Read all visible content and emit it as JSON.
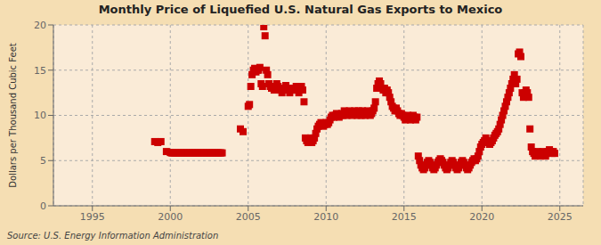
{
  "chart_data": {
    "type": "scatter",
    "title": "Monthly Price of Liquefied U.S. Natural Gas Exports to Mexico",
    "ylabel": "Dollars per Thousand Cubic Feet",
    "annotation": "Source: U.S. Energy Information Administration",
    "color": "#cc0000",
    "marker": "square",
    "grid": true,
    "xlim": [
      1992.5,
      2026.5
    ],
    "ylim": [
      0,
      20
    ],
    "xticks": [
      1995,
      2000,
      2005,
      2010,
      2015,
      2020,
      2025
    ],
    "yticks": [
      0,
      5,
      10,
      15,
      20
    ],
    "x": [
      1999.0,
      1999.2,
      1999.4,
      1999.75,
      2000.0,
      2000.083,
      2000.167,
      2000.25,
      2000.333,
      2000.417,
      2000.5,
      2000.583,
      2000.667,
      2000.75,
      2000.833,
      2000.917,
      2001.0,
      2001.083,
      2001.167,
      2001.25,
      2001.333,
      2001.417,
      2001.5,
      2001.583,
      2001.667,
      2001.75,
      2001.833,
      2001.917,
      2002.0,
      2002.083,
      2002.167,
      2002.25,
      2002.333,
      2002.417,
      2002.5,
      2002.583,
      2002.667,
      2002.75,
      2002.833,
      2002.917,
      2003.0,
      2003.083,
      2003.167,
      2003.25,
      2003.333,
      2004.5,
      2004.67,
      2005.0,
      2005.083,
      2005.167,
      2005.25,
      2005.333,
      2005.417,
      2005.5,
      2005.583,
      2005.667,
      2005.75,
      2005.833,
      2005.917,
      2006.0,
      2006.083,
      2006.167,
      2006.25,
      2006.333,
      2006.417,
      2006.5,
      2006.583,
      2006.667,
      2006.75,
      2006.833,
      2006.917,
      2007.0,
      2007.083,
      2007.167,
      2007.25,
      2007.333,
      2007.417,
      2007.5,
      2007.583,
      2007.667,
      2007.75,
      2007.833,
      2007.917,
      2008.0,
      2008.083,
      2008.167,
      2008.25,
      2008.333,
      2008.417,
      2008.5,
      2008.583,
      2008.667,
      2008.75,
      2008.833,
      2008.917,
      2009.0,
      2009.083,
      2009.167,
      2009.25,
      2009.333,
      2009.417,
      2009.5,
      2009.583,
      2009.667,
      2009.75,
      2009.833,
      2009.917,
      2010.0,
      2010.083,
      2010.167,
      2010.25,
      2010.333,
      2010.417,
      2010.5,
      2010.583,
      2010.667,
      2010.75,
      2010.833,
      2010.917,
      2011.0,
      2011.083,
      2011.167,
      2011.25,
      2011.333,
      2011.417,
      2011.5,
      2011.583,
      2011.667,
      2011.75,
      2011.833,
      2011.917,
      2012.0,
      2012.083,
      2012.167,
      2012.25,
      2012.333,
      2012.417,
      2012.5,
      2012.583,
      2012.667,
      2012.75,
      2012.833,
      2012.917,
      2013.0,
      2013.083,
      2013.167,
      2013.25,
      2013.333,
      2013.417,
      2013.5,
      2013.583,
      2013.667,
      2013.75,
      2013.833,
      2013.917,
      2014.0,
      2014.083,
      2014.167,
      2014.25,
      2014.333,
      2014.417,
      2014.5,
      2014.583,
      2014.667,
      2014.75,
      2014.833,
      2014.917,
      2015.0,
      2015.083,
      2015.167,
      2015.25,
      2015.333,
      2015.417,
      2015.5,
      2015.583,
      2015.667,
      2015.75,
      2015.833,
      2015.917,
      2016.0,
      2016.083,
      2016.167,
      2016.25,
      2016.333,
      2016.417,
      2016.5,
      2016.583,
      2016.667,
      2016.75,
      2016.833,
      2016.917,
      2017.0,
      2017.083,
      2017.167,
      2017.25,
      2017.333,
      2017.417,
      2017.5,
      2017.583,
      2017.667,
      2017.75,
      2017.833,
      2017.917,
      2018.0,
      2018.083,
      2018.167,
      2018.25,
      2018.333,
      2018.417,
      2018.5,
      2018.583,
      2018.667,
      2018.75,
      2018.833,
      2018.917,
      2019.0,
      2019.083,
      2019.167,
      2019.25,
      2019.333,
      2019.417,
      2019.5,
      2019.583,
      2019.667,
      2019.75,
      2019.833,
      2019.917,
      2020.0,
      2020.083,
      2020.167,
      2020.25,
      2020.333,
      2020.417,
      2020.5,
      2020.583,
      2020.667,
      2020.75,
      2020.833,
      2020.917,
      2021.0,
      2021.083,
      2021.167,
      2021.25,
      2021.333,
      2021.417,
      2021.5,
      2021.583,
      2021.667,
      2021.75,
      2021.833,
      2021.917,
      2022.0,
      2022.083,
      2022.167,
      2022.25,
      2022.333,
      2022.417,
      2022.5,
      2022.583,
      2022.667,
      2022.75,
      2022.833,
      2022.917,
      2023.0,
      2023.083,
      2023.167,
      2023.25,
      2023.333,
      2023.417,
      2023.5,
      2023.583,
      2023.667,
      2023.75,
      2023.833,
      2023.917,
      2024.0,
      2024.083,
      2024.167,
      2024.25,
      2024.333,
      2024.417,
      2024.5,
      2024.583,
      2024.667
    ],
    "values": [
      7.1,
      7.0,
      7.1,
      6.0,
      5.9,
      5.85,
      5.85,
      5.85,
      5.85,
      5.85,
      5.85,
      5.85,
      5.85,
      5.85,
      5.85,
      5.85,
      5.85,
      5.85,
      5.85,
      5.85,
      5.85,
      5.85,
      5.85,
      5.85,
      5.85,
      5.85,
      5.85,
      5.85,
      5.85,
      5.85,
      5.85,
      5.85,
      5.85,
      5.85,
      5.85,
      5.85,
      5.85,
      5.85,
      5.85,
      5.85,
      5.85,
      5.85,
      5.85,
      5.85,
      5.85,
      8.5,
      8.2,
      11.0,
      11.2,
      13.2,
      14.5,
      15.0,
      15.2,
      14.8,
      15.0,
      15.0,
      15.3,
      13.5,
      13.2,
      19.8,
      18.8,
      15.0,
      14.5,
      13.5,
      13.2,
      13.0,
      13.2,
      12.8,
      13.0,
      13.5,
      13.2,
      13.0,
      12.8,
      12.5,
      12.8,
      13.0,
      13.3,
      12.8,
      13.0,
      12.5,
      12.8,
      12.8,
      13.0,
      12.8,
      13.2,
      12.8,
      12.5,
      13.0,
      13.2,
      12.8,
      11.5,
      7.5,
      7.2,
      7.0,
      7.2,
      7.5,
      7.0,
      7.2,
      7.5,
      8.0,
      8.5,
      8.8,
      9.0,
      9.2,
      9.0,
      8.8,
      9.0,
      9.2,
      9.0,
      9.2,
      9.5,
      9.8,
      10.0,
      9.8,
      10.0,
      10.2,
      10.0,
      9.8,
      10.0,
      10.2,
      10.0,
      10.5,
      10.2,
      10.0,
      10.2,
      10.5,
      10.2,
      10.0,
      10.2,
      10.5,
      10.2,
      10.0,
      10.5,
      10.2,
      10.0,
      10.5,
      10.2,
      10.0,
      10.2,
      10.5,
      10.2,
      10.0,
      10.2,
      10.5,
      10.8,
      11.5,
      13.0,
      13.5,
      13.8,
      13.5,
      13.0,
      12.8,
      13.0,
      12.5,
      12.8,
      12.5,
      12.0,
      11.5,
      11.0,
      10.8,
      10.5,
      10.8,
      10.5,
      10.2,
      10.0,
      10.2,
      10.0,
      9.8,
      9.5,
      9.8,
      10.0,
      9.8,
      9.5,
      9.8,
      10.0,
      9.8,
      9.5,
      9.8,
      5.5,
      5.0,
      4.5,
      4.2,
      4.0,
      4.2,
      4.5,
      4.8,
      5.0,
      4.8,
      4.5,
      4.2,
      4.0,
      4.2,
      4.5,
      4.8,
      5.0,
      5.2,
      5.0,
      4.8,
      4.5,
      4.2,
      4.0,
      4.2,
      4.5,
      4.8,
      5.0,
      4.8,
      4.5,
      4.2,
      4.0,
      4.2,
      4.5,
      4.8,
      5.0,
      4.8,
      4.5,
      4.2,
      4.0,
      4.2,
      4.5,
      4.8,
      5.0,
      5.2,
      5.0,
      5.2,
      5.5,
      6.0,
      6.5,
      6.8,
      7.0,
      7.2,
      7.5,
      7.2,
      7.0,
      6.8,
      7.0,
      7.2,
      7.5,
      7.8,
      8.0,
      8.2,
      8.5,
      9.0,
      9.5,
      10.0,
      10.5,
      11.0,
      11.5,
      12.0,
      12.5,
      13.0,
      13.5,
      14.0,
      14.5,
      13.5,
      14.0,
      16.8,
      17.0,
      16.5,
      12.5,
      12.0,
      12.5,
      12.8,
      12.5,
      12.0,
      8.5,
      6.5,
      6.0,
      5.8,
      5.5,
      5.8,
      6.0,
      5.8,
      5.5,
      5.8,
      6.0,
      5.8,
      5.5,
      5.8,
      6.0,
      6.2,
      6.0,
      5.8,
      6.0,
      5.8
    ]
  }
}
